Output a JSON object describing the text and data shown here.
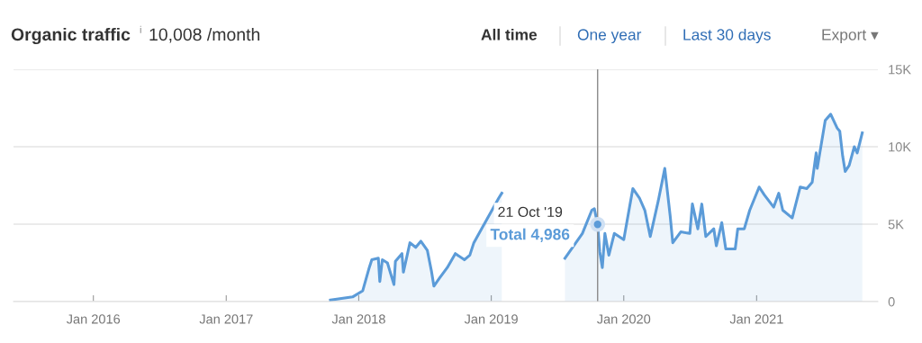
{
  "chart_data": {
    "type": "area",
    "title": "Organic traffic",
    "subtitle": "10,008 /month",
    "annotations": [
      "i",
      "All time",
      "One year",
      "Last 30 days",
      "Export ▾",
      {
        "text": "21 Oct '19",
        "x": "2019-10-21",
        "y": 4986
      },
      {
        "text": "Total 4,986",
        "x": "2019-10-21",
        "y": 4986
      }
    ],
    "x": [
      "2017-10-15",
      "2017-12-15",
      "2018-01-12",
      "2018-01-30",
      "2018-02-06",
      "2018-02-24",
      "2018-02-28",
      "2018-03-07",
      "2018-03-21",
      "2018-04-08",
      "2018-04-12",
      "2018-04-30",
      "2018-05-04",
      "2018-05-22",
      "2018-06-07",
      "2018-06-21",
      "2018-07-09",
      "2018-07-20",
      "2018-07-27",
      "2018-08-11",
      "2018-09-02",
      "2018-09-24",
      "2018-10-19",
      "2018-11-03",
      "2018-11-14",
      "2019-01-22",
      "2019-01-30",
      "2019-02-21",
      "2019-05-01",
      "2019-07-23",
      "2019-09-09",
      "2019-10-05",
      "2019-10-12",
      "2019-10-21",
      "2019-10-27",
      "2019-11-03",
      "2019-11-10",
      "2019-11-21",
      "2019-12-06",
      "2020-01-01",
      "2020-01-26",
      "2020-02-13",
      "2020-02-28",
      "2020-03-14",
      "2020-04-05",
      "2020-04-23",
      "2020-05-08",
      "2020-05-15",
      "2020-06-06",
      "2020-07-01",
      "2020-07-08",
      "2020-07-23",
      "2020-08-03",
      "2020-08-14",
      "2020-09-05",
      "2020-09-12",
      "2020-09-27",
      "2020-10-08",
      "2020-11-03",
      "2020-11-10",
      "2020-11-28",
      "2020-12-13",
      "2021-01-08",
      "2021-01-22",
      "2021-02-17",
      "2021-03-03",
      "2021-03-14",
      "2021-04-09",
      "2021-05-01",
      "2021-05-19",
      "2021-06-03",
      "2021-06-14",
      "2021-06-17",
      "2021-07-09",
      "2021-07-24",
      "2021-08-11",
      "2021-08-18",
      "2021-08-26",
      "2021-09-02",
      "2021-09-13",
      "2021-09-27",
      "2021-10-05",
      "2021-10-19"
    ],
    "series": [
      {
        "color": "#5b9bd8",
        "values": [
          100,
          300,
          700,
          2200,
          2700,
          2800,
          1300,
          2700,
          2500,
          1100,
          2600,
          3100,
          1900,
          3800,
          3500,
          3900,
          3300,
          2000,
          1000,
          1500,
          2200,
          3100,
          2700,
          3000,
          3800,
          6700,
          7000,
          null,
          null,
          2800,
          4400,
          5900,
          6000,
          4986,
          3200,
          2200,
          4400,
          3000,
          4400,
          4000,
          7300,
          6700,
          5900,
          4200,
          6500,
          8600,
          5500,
          3800,
          4500,
          4400,
          6300,
          4700,
          6300,
          4200,
          4700,
          3600,
          5100,
          3400,
          3400,
          4700,
          4700,
          5900,
          7400,
          6900,
          6100,
          7000,
          5900,
          5400,
          7400,
          7300,
          7700,
          9600,
          8600,
          11700,
          12100,
          11200,
          11000,
          9400,
          8400,
          8800,
          10000,
          9600,
          10900
        ]
      }
    ],
    "xlim": [
      "2015-05-26",
      "2021-12-01"
    ],
    "xticks": [
      {
        "value": "2016-01-01",
        "label": "Jan 2016"
      },
      {
        "value": "2017-01-01",
        "label": "Jan 2017"
      },
      {
        "value": "2018-01-01",
        "label": "Jan 2018"
      },
      {
        "value": "2019-01-01",
        "label": "Jan 2019"
      },
      {
        "value": "2020-01-01",
        "label": "Jan 2020"
      },
      {
        "value": "2021-01-01",
        "label": "Jan 2021"
      }
    ],
    "ylim": [
      0,
      15000
    ],
    "yticks": [
      0,
      {
        "value": 5000,
        "label": "5K"
      },
      {
        "value": 10000,
        "label": "10K"
      },
      {
        "value": 15000,
        "label": "15K"
      }
    ],
    "ref_lines": [
      {
        "axis": "x",
        "value": "2019-10-21",
        "color": "#8a8a8a"
      }
    ],
    "grid": "y",
    "legend": false,
    "marker": "none",
    "line_style": "solid"
  }
}
